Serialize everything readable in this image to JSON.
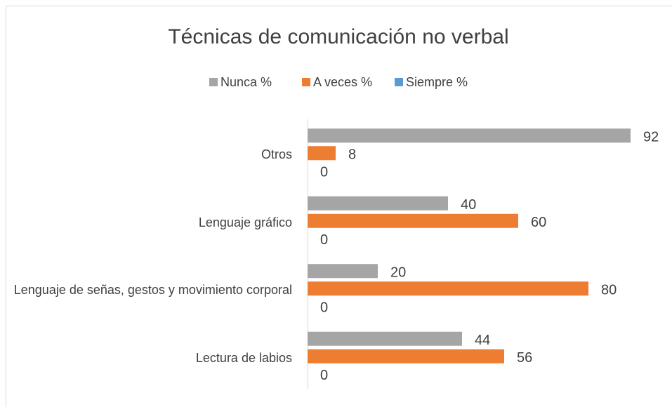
{
  "chart_data": {
    "type": "barh",
    "title": "Técnicas de comunicación no verbal",
    "categories": [
      "Lectura de labios",
      "Lenguaje de señas, gestos y movimiento corporal",
      "Lenguaje gráfico",
      "Otros"
    ],
    "series": [
      {
        "name": "Nunca %",
        "color": "#a5a5a5",
        "values": [
          44,
          20,
          40,
          92
        ]
      },
      {
        "name": "A veces %",
        "color": "#ed7d31",
        "values": [
          56,
          80,
          60,
          8
        ]
      },
      {
        "name": "Siempre %",
        "color": "#5b9bd5",
        "values": [
          0,
          0,
          0,
          0
        ]
      }
    ],
    "xlim": [
      0,
      100
    ],
    "legend": "top"
  }
}
